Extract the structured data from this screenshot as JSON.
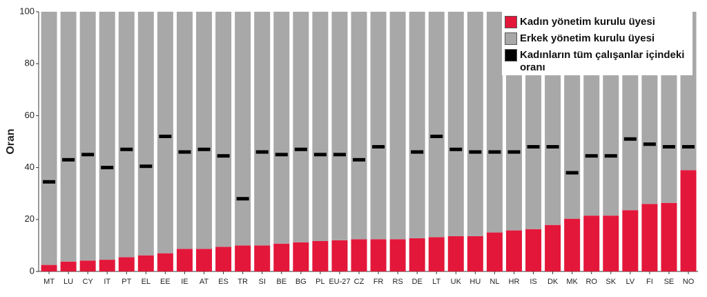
{
  "chart_data": {
    "type": "stacked_bar",
    "ylabel": "Oran",
    "categories": [
      "MT",
      "LU",
      "CY",
      "IT",
      "PT",
      "EL",
      "EE",
      "IE",
      "AT",
      "ES",
      "TR",
      "SI",
      "BE",
      "BG",
      "PL",
      "EU-27",
      "CZ",
      "FR",
      "RS",
      "DE",
      "LT",
      "UK",
      "HU",
      "NL",
      "HR",
      "IS",
      "DK",
      "MK",
      "RO",
      "SK",
      "LV",
      "FI",
      "SE",
      "NO"
    ],
    "series": [
      {
        "name": "Kadın yönetim kurulu üyesi",
        "color": "#e3173a",
        "kind": "bar",
        "values": [
          2.5,
          3.8,
          4.2,
          4.5,
          5.5,
          6.2,
          7,
          8.7,
          8.7,
          9.5,
          10,
          10,
          10.7,
          11.2,
          11.7,
          12,
          12.4,
          12.4,
          12.4,
          12.8,
          13.2,
          13.6,
          13.6,
          15,
          15.8,
          16.3,
          17.9,
          20.3,
          21.5,
          21.5,
          23.6,
          26,
          26.4,
          39
        ]
      },
      {
        "name": "Erkek yönetim kurulu üyesi",
        "color": "#a8a8a8",
        "kind": "bar",
        "values": [
          97.5,
          96.2,
          95.8,
          95.5,
          94.5,
          93.8,
          93,
          91.3,
          91.3,
          90.5,
          90,
          90,
          89.3,
          88.8,
          88.3,
          88,
          87.6,
          87.6,
          87.6,
          87.2,
          86.8,
          86.4,
          86.4,
          85,
          84.2,
          83.7,
          82.1,
          79.7,
          78.5,
          78.5,
          76.4,
          74,
          73.6,
          61
        ]
      },
      {
        "name": "Kadınların tüm çalışanlar içindeki oranı",
        "color": "#000000",
        "kind": "marker",
        "values": [
          34.5,
          43,
          45,
          40,
          47,
          40.5,
          52,
          46,
          47,
          44.5,
          28,
          46,
          45,
          47,
          45,
          45,
          43,
          48,
          null,
          46,
          52,
          47,
          46,
          46,
          46,
          48,
          48,
          38,
          44.5,
          44.5,
          51,
          49,
          48,
          48
        ]
      }
    ],
    "ylim": [
      0,
      100
    ],
    "yticks": [
      0,
      20,
      40,
      60,
      80,
      100
    ],
    "legend": "upper right"
  }
}
